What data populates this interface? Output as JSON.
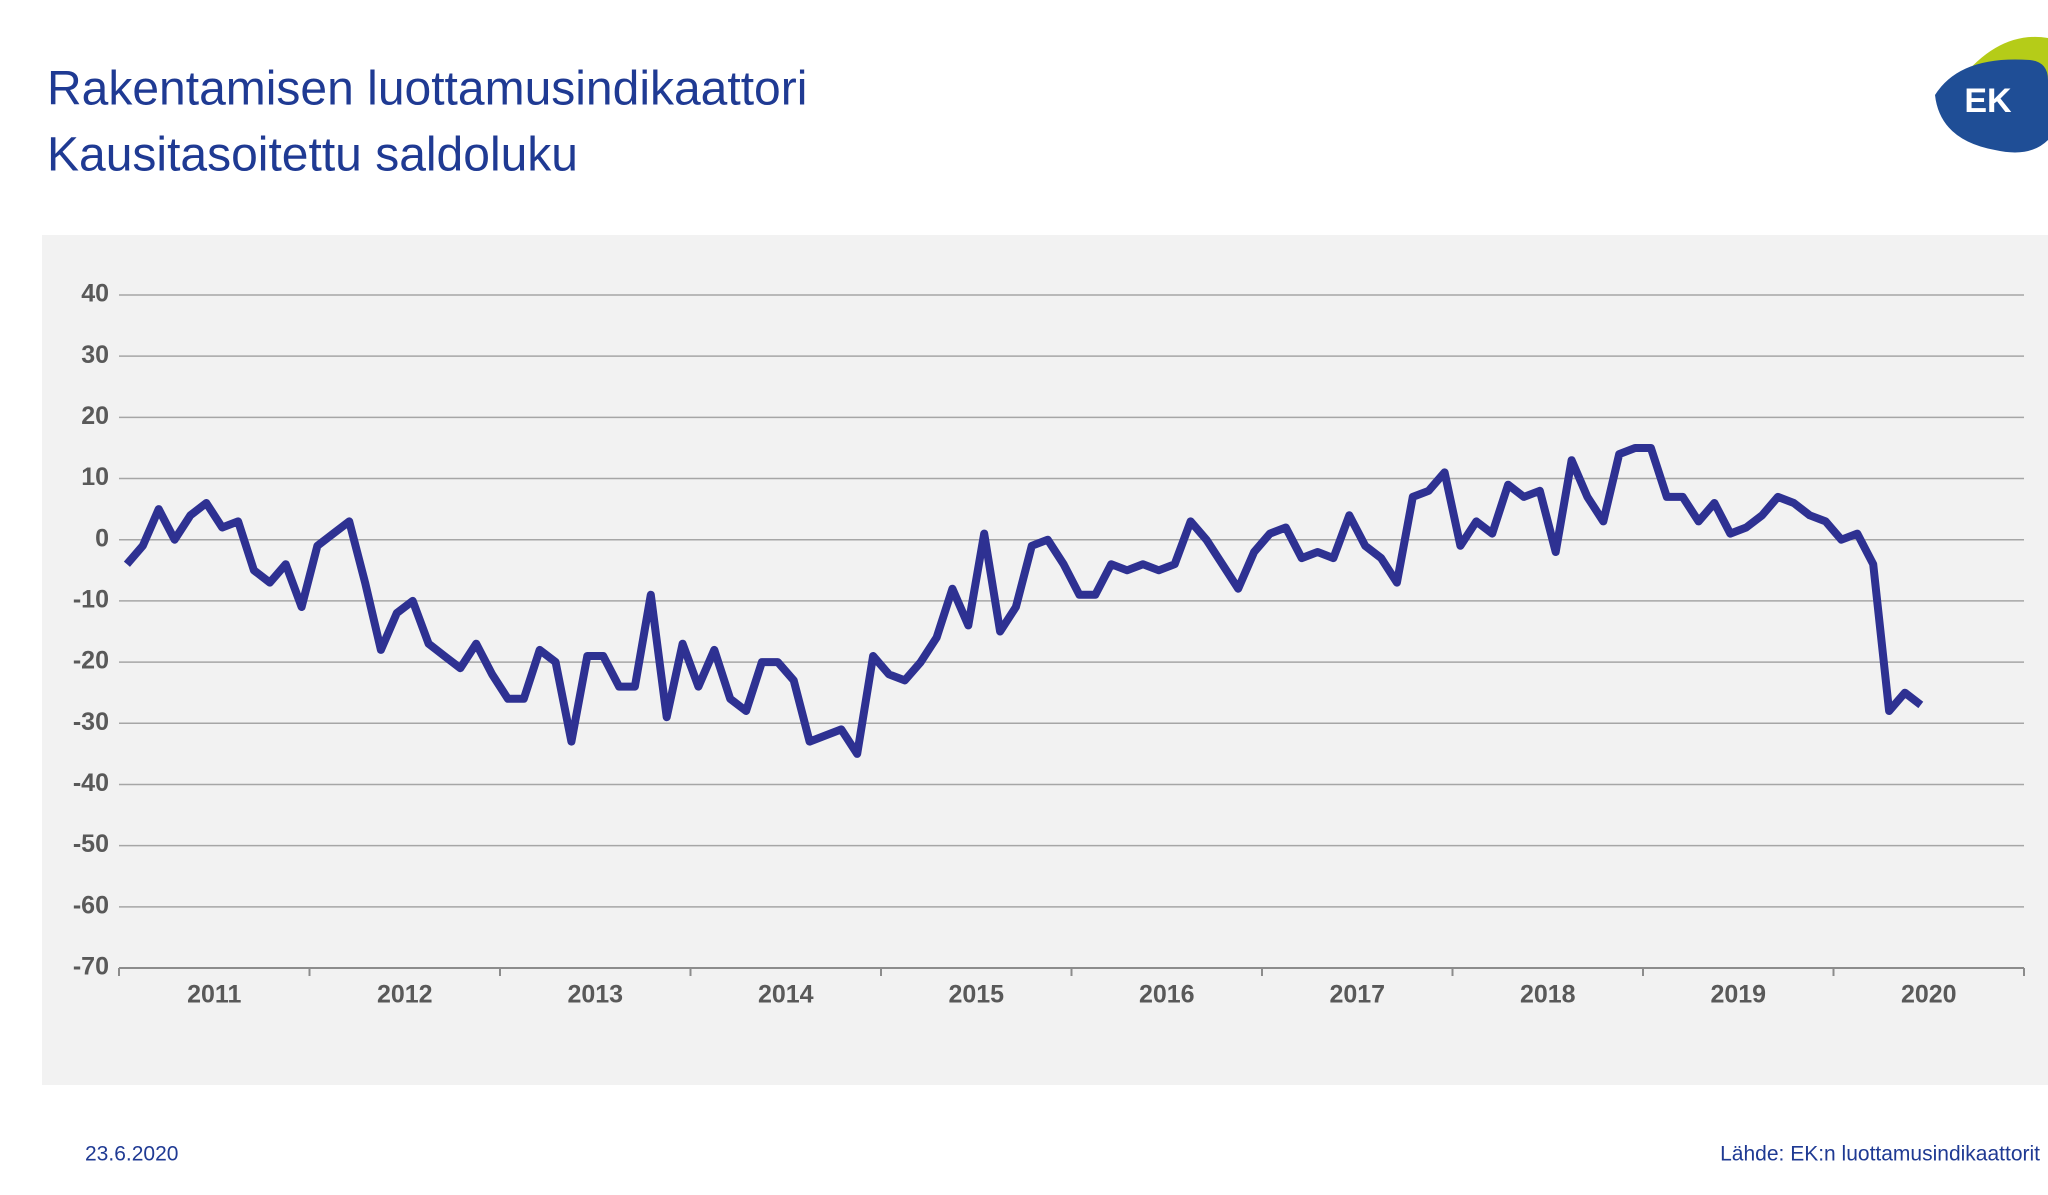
{
  "title": "Rakentamisen luottamusindikaattori",
  "subtitle": "Kausitasoitettu saldoluku",
  "logo_text": "EK",
  "date": "23.6.2020",
  "source": "Lähde: EK:n luottamusindikaattorit",
  "chart_data": {
    "type": "line",
    "x_labels": [
      "2011",
      "2012",
      "2013",
      "2014",
      "2015",
      "2016",
      "2017",
      "2018",
      "2019",
      "2020"
    ],
    "series": [
      {
        "name": "Rakentamisen luottamusindikaattori",
        "color": "#2e3192",
        "values": [
          -4,
          -1,
          5,
          0,
          4,
          6,
          2,
          3,
          -5,
          -7,
          -4,
          -11,
          -1,
          1,
          3,
          -7,
          -18,
          -12,
          -10,
          -17,
          -19,
          -21,
          -17,
          -22,
          -26,
          -26,
          -18,
          -20,
          -33,
          -19,
          -19,
          -24,
          -24,
          -9,
          -29,
          -17,
          -24,
          -18,
          -26,
          -28,
          -20,
          -20,
          -23,
          -33,
          -32,
          -31,
          -35,
          -19,
          -22,
          -23,
          -20,
          -16,
          -8,
          -14,
          1,
          -15,
          -11,
          -1,
          0,
          -4,
          -9,
          -9,
          -4,
          -5,
          -4,
          -5,
          -4,
          3,
          0,
          -4,
          -8,
          -2,
          1,
          2,
          -3,
          -2,
          -3,
          4,
          -1,
          -3,
          -7,
          7,
          8,
          11,
          -1,
          3,
          1,
          9,
          7,
          8,
          -2,
          13,
          7,
          3,
          14,
          15,
          15,
          7,
          7,
          3,
          6,
          1,
          2,
          4,
          7,
          6,
          4,
          3,
          0,
          1,
          -4,
          -28,
          -25,
          -27
        ]
      }
    ],
    "ylim": [
      -70,
      40
    ],
    "yticks": [
      -70,
      -60,
      -50,
      -40,
      -30,
      -20,
      -10,
      0,
      10,
      20,
      30,
      40
    ],
    "grid": true
  }
}
